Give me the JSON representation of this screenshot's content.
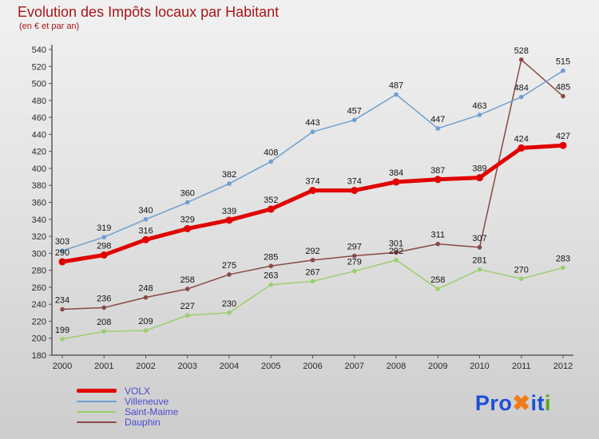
{
  "header": {
    "title": "Evolution des Impôts locaux par Habitant",
    "subtitle": "(en € et par an)"
  },
  "legend": [
    {
      "label": "VOLX",
      "color": "#e10000",
      "thick": true
    },
    {
      "label": "Villeneuve",
      "color": "#6f9fd0",
      "thick": false
    },
    {
      "label": "Saint-Maime",
      "color": "#9bcf6e",
      "thick": false
    },
    {
      "label": "Dauphin",
      "color": "#8a4a45",
      "thick": false
    }
  ],
  "logo": {
    "segments": [
      {
        "text": "Pro",
        "color": "#1d4ed8"
      },
      {
        "text": "✖",
        "color": "#ef7b1a"
      },
      {
        "text": "it",
        "color": "#1d4ed8"
      },
      {
        "text": "i",
        "color": "#55a41d"
      }
    ]
  },
  "chart_data": {
    "type": "line",
    "title": "Evolution des Impôts locaux par Habitant",
    "subtitle": "(en € et par an)",
    "xlabel": "",
    "ylabel": "",
    "x": [
      2000,
      2001,
      2002,
      2003,
      2004,
      2005,
      2006,
      2007,
      2008,
      2009,
      2010,
      2011,
      2012
    ],
    "ylim": [
      180,
      540
    ],
    "ytick_step": 20,
    "grid": false,
    "legend_position": "bottom-left",
    "series": [
      {
        "name": "VOLX",
        "color": "#e10000",
        "width": 5,
        "values": [
          290,
          298,
          316,
          329,
          339,
          352,
          374,
          374,
          384,
          387,
          389,
          424,
          427
        ]
      },
      {
        "name": "Villeneuve",
        "color": "#6f9fd0",
        "width": 1.5,
        "values": [
          303,
          319,
          340,
          360,
          382,
          408,
          443,
          457,
          487,
          447,
          463,
          484,
          515
        ]
      },
      {
        "name": "Saint-Maime",
        "color": "#9bcf6e",
        "width": 1.5,
        "values": [
          199,
          208,
          209,
          227,
          230,
          263,
          267,
          279,
          292,
          258,
          281,
          270,
          283
        ]
      },
      {
        "name": "Dauphin",
        "color": "#8a4a45",
        "width": 1.5,
        "values": [
          234,
          236,
          248,
          258,
          275,
          285,
          292,
          297,
          301,
          311,
          307,
          528,
          485
        ]
      }
    ]
  }
}
